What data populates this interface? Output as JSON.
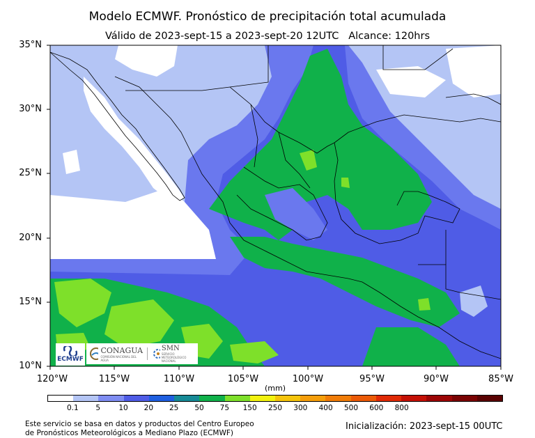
{
  "title": "Modelo ECMWF. Pronóstico de precipitación total acumulada",
  "subtitle": "Válido de 2023-sept-15 a 2023-sept-20 12UTC   Alcance: 120hrs",
  "axes": {
    "lat_labels": [
      "35°N",
      "30°N",
      "25°N",
      "20°N",
      "15°N",
      "10°N"
    ],
    "lon_labels": [
      "120°W",
      "115°W",
      "110°W",
      "105°W",
      "100°W",
      "95°W",
      "90°W",
      "85°W"
    ],
    "lat_range": [
      10,
      35
    ],
    "lon_range": [
      -120,
      -85
    ]
  },
  "colorbar": {
    "unit": "(mm)",
    "labels": [
      "0.1",
      "5",
      "10",
      "20",
      "25",
      "50",
      "75",
      "150",
      "250",
      "300",
      "400",
      "500",
      "600",
      "800"
    ],
    "colors": [
      "#ffffff",
      "#b4c5f5",
      "#7f8df2",
      "#4f5ce6",
      "#1f5fe0",
      "#168a96",
      "#10b14a",
      "#7ee02a",
      "#f2f20f",
      "#f5c40b",
      "#f59e0a",
      "#f07c08",
      "#eb5a07",
      "#e02a06",
      "#c41005",
      "#9c0505",
      "#7a0303",
      "#5a0202"
    ]
  },
  "logos": {
    "ecmwf": "ECMWF",
    "conagua": "CONAGUA",
    "conagua_sub": "COMISIÓN NACIONAL DEL AGUA",
    "smn": "SMN",
    "smn_sub": "SERVICIO METEOROLÓGICO NACIONAL"
  },
  "footer": {
    "left_line1": "Este servicio se basa en datos y productos del Centro Europeo",
    "left_line2": "de Pronósticos Meteorológicos a Mediano Plazo (ECMWF)",
    "right": "Inicialización: 2023-sept-15 00UTC"
  }
}
